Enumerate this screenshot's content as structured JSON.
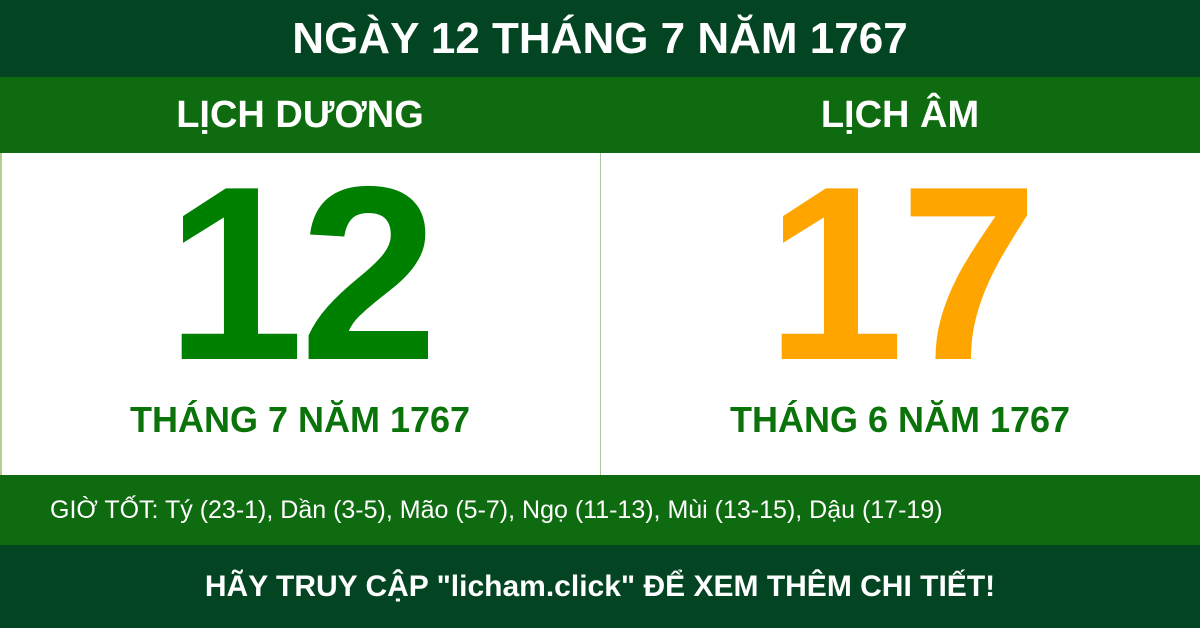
{
  "header": {
    "title": "NGÀY 12 THÁNG 7 NĂM 1767"
  },
  "solar": {
    "label": "LỊCH DƯƠNG",
    "day": "12",
    "month_year": "THÁNG 7 NĂM 1767",
    "color": "#008000"
  },
  "lunar": {
    "label": "LỊCH ÂM",
    "day": "17",
    "month_year": "THÁNG 6 NĂM 1767",
    "color": "#ffa500"
  },
  "good_hours": "GIỜ TỐT: Tý (23-1), Dần (3-5), Mão (5-7), Ngọ (11-13), Mùi (13-15), Dậu (17-19)",
  "footer": {
    "text": "HÃY TRUY CẬP \"licham.click\" ĐỂ XEM THÊM CHI TIẾT!"
  },
  "colors": {
    "dark_green": "#034422",
    "green": "#0f6b0f"
  }
}
